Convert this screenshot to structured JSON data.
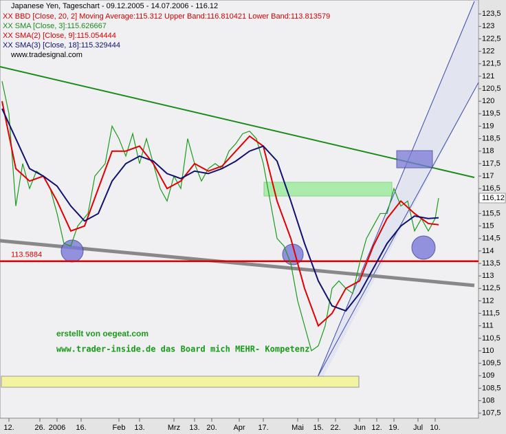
{
  "chart_data": {
    "type": "line",
    "title": "Japanese Yen, Tageschart - 09.12.2005 - 14.07.2006 - 116.12",
    "legend_entries": [
      "XX BBD [Close, 20, 2] Moving Average:115.312 Upper Band:116.810421 Lower Band:113.813579",
      "XX SMA [Close, 3]:115.626667",
      "XX SMA(2) [Close, 9]:115.054444",
      "XX SMA(3) [Close, 18]:115.329444",
      "www.tradesignal.com"
    ],
    "annotations": [
      "erstellt von oegeat.com",
      "www.trader-inside.de das Board mich MEHR- Kompetenz"
    ],
    "support_level": 113.5884,
    "last_price": {
      "value": 116.12,
      "label": "116,12"
    },
    "xlim": [
      0,
      139
    ],
    "xticks": [
      {
        "value": 2,
        "label": "12."
      },
      {
        "value": 11,
        "label": "26."
      },
      {
        "value": 16,
        "label": "2006"
      },
      {
        "value": 23,
        "label": "16."
      },
      {
        "value": 34,
        "label": "Feb"
      },
      {
        "value": 40,
        "label": "13."
      },
      {
        "value": 50,
        "label": "Mrz"
      },
      {
        "value": 56,
        "label": "13."
      },
      {
        "value": 61,
        "label": "20."
      },
      {
        "value": 69,
        "label": "Apr"
      },
      {
        "value": 76,
        "label": "17."
      },
      {
        "value": 86,
        "label": "Mai"
      },
      {
        "value": 92,
        "label": "15."
      },
      {
        "value": 97,
        "label": "22."
      },
      {
        "value": 104,
        "label": "Jun"
      },
      {
        "value": 109,
        "label": "12."
      },
      {
        "value": 114,
        "label": "19."
      },
      {
        "value": 121,
        "label": "Jul"
      },
      {
        "value": 126,
        "label": "10."
      }
    ],
    "ylim": [
      107.3,
      124.0
    ],
    "yticks": [
      {
        "value": 107.5,
        "label": "107,5"
      },
      108,
      {
        "value": 108.5,
        "label": "108,5"
      },
      109,
      {
        "value": 109.5,
        "label": "109,5"
      },
      110,
      {
        "value": 110.5,
        "label": "110,5"
      },
      111,
      {
        "value": 111.5,
        "label": "111,5"
      },
      112,
      {
        "value": 112.5,
        "label": "112,5"
      },
      113,
      {
        "value": 113.5,
        "label": "113,5"
      },
      114,
      {
        "value": 114.5,
        "label": "114,5"
      },
      115,
      {
        "value": 115.5,
        "label": "115,5"
      },
      116,
      {
        "value": 116.5,
        "label": "116,5"
      },
      117,
      {
        "value": 117.5,
        "label": "117,5"
      },
      118,
      {
        "value": 118.5,
        "label": "118,5"
      },
      119,
      {
        "value": 119.5,
        "label": "119,5"
      },
      120,
      {
        "value": 120.5,
        "label": "120,5"
      },
      121,
      {
        "value": 121.5,
        "label": "121,5"
      },
      122,
      {
        "value": 122.5,
        "label": "122,5"
      },
      123,
      {
        "value": 123.5,
        "label": "123,5"
      }
    ],
    "series": [
      {
        "name": "Close",
        "color": "#1a9a1a",
        "x": [
          0,
          2,
          4,
          6,
          8,
          10,
          12,
          14,
          16,
          18,
          20,
          22,
          25,
          27,
          30,
          32,
          34,
          36,
          38,
          40,
          42,
          44,
          46,
          48,
          50,
          52,
          54,
          56,
          58,
          60,
          62,
          64,
          66,
          68,
          70,
          72,
          74,
          76,
          78,
          80,
          82,
          84,
          86,
          88,
          90,
          92,
          94,
          96,
          98,
          100,
          102,
          104,
          106,
          108,
          110,
          112,
          114,
          116,
          118,
          120,
          122,
          124,
          126,
          127
        ],
        "values": [
          120.8,
          119.5,
          115.8,
          117.5,
          116.5,
          117.2,
          117,
          116.5,
          115.5,
          114.3,
          114.2,
          115,
          115.5,
          117,
          117.5,
          119,
          118.5,
          117.8,
          118.7,
          117.5,
          118.5,
          117.5,
          116.5,
          116,
          117,
          116.5,
          118.5,
          117.5,
          116.8,
          117.3,
          117.5,
          117.3,
          118,
          118.3,
          118.7,
          118.8,
          118.5,
          117.5,
          116,
          114.5,
          114.2,
          113.5,
          112,
          111,
          110,
          110.2,
          111,
          112.5,
          112.8,
          112.5,
          112.3,
          113.5,
          114.5,
          115,
          115.5,
          115.5,
          116.5,
          115.8,
          116,
          114.8,
          115.3,
          114.8,
          115.3,
          116.12
        ]
      },
      {
        "name": "SMA(2) [Close, 9]",
        "color": "#e00000",
        "x": [
          0,
          4,
          8,
          12,
          16,
          20,
          24,
          28,
          32,
          36,
          40,
          44,
          48,
          52,
          56,
          60,
          64,
          68,
          72,
          76,
          80,
          84,
          88,
          92,
          96,
          100,
          104,
          108,
          112,
          116,
          120,
          124,
          127
        ],
        "values": [
          120,
          117.3,
          116.8,
          117,
          116,
          114.8,
          115,
          116.5,
          118,
          118,
          118.2,
          117.5,
          116.5,
          116.8,
          117.5,
          117.2,
          117.4,
          118,
          118.6,
          118.2,
          116,
          114.5,
          112.5,
          111,
          111.5,
          112.5,
          112.8,
          114.2,
          115.3,
          116,
          115.5,
          115.1,
          115.05
        ]
      },
      {
        "name": "SMA(3) [Close, 18]",
        "color": "#101070",
        "x": [
          0,
          4,
          8,
          12,
          16,
          20,
          24,
          28,
          32,
          36,
          40,
          44,
          48,
          52,
          56,
          60,
          64,
          68,
          72,
          76,
          80,
          84,
          88,
          92,
          96,
          100,
          104,
          108,
          112,
          116,
          120,
          124,
          127
        ],
        "values": [
          119.7,
          118.5,
          117.3,
          117,
          116.6,
          115.8,
          115.2,
          115.5,
          116.8,
          117.5,
          117.8,
          117.6,
          117.1,
          116.9,
          117.2,
          117.1,
          117.3,
          117.6,
          118,
          118.2,
          117.6,
          116,
          114.3,
          112.8,
          111.8,
          111.6,
          112.3,
          113.3,
          114.3,
          115,
          115.4,
          115.3,
          115.33
        ]
      }
    ]
  }
}
